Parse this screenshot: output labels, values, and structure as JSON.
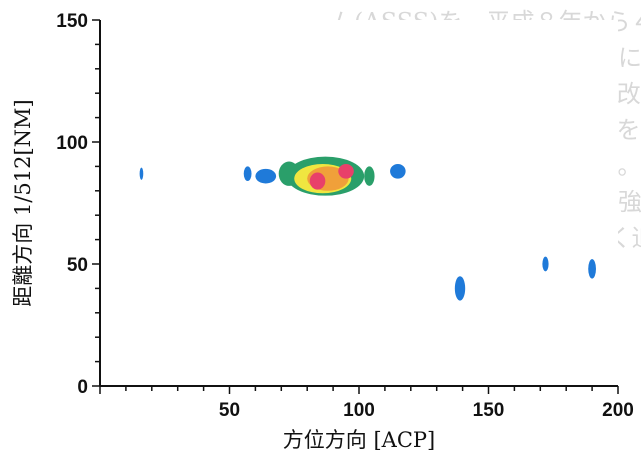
{
  "chart_data": {
    "type": "heatmap",
    "xlabel": "方位方向 [ACP]",
    "ylabel": "距離方向 1/512[NM]",
    "xlim": [
      0,
      200
    ],
    "ylim": [
      0,
      150
    ],
    "xticks": [
      50,
      100,
      150,
      200
    ],
    "yticks": [
      0,
      50,
      100,
      150
    ],
    "grid": false,
    "colors": [
      "#1f7ad9",
      "#2a9f6a",
      "#f0e640",
      "#f0a03a",
      "#e8406a"
    ],
    "blobs": [
      {
        "x": 16,
        "y": 87,
        "rx": 0.7,
        "ry": 2.5,
        "level": 0
      },
      {
        "x": 57,
        "y": 87,
        "rx": 1.5,
        "ry": 3,
        "level": 0
      },
      {
        "x": 64,
        "y": 86,
        "rx": 4,
        "ry": 3,
        "level": 0
      },
      {
        "x": 73,
        "y": 87,
        "rx": 4,
        "ry": 5,
        "level": 1
      },
      {
        "x": 87,
        "y": 86,
        "rx": 15,
        "ry": 8,
        "level": 1
      },
      {
        "x": 86,
        "y": 85,
        "rx": 11,
        "ry": 6,
        "level": 2
      },
      {
        "x": 88,
        "y": 85,
        "rx": 8,
        "ry": 5,
        "level": 3
      },
      {
        "x": 84,
        "y": 84,
        "rx": 3,
        "ry": 3.5,
        "level": 4
      },
      {
        "x": 95,
        "y": 88,
        "rx": 3,
        "ry": 3,
        "level": 4
      },
      {
        "x": 104,
        "y": 86,
        "rx": 2,
        "ry": 4,
        "level": 1
      },
      {
        "x": 115,
        "y": 88,
        "rx": 3,
        "ry": 3,
        "level": 0
      },
      {
        "x": 139,
        "y": 40,
        "rx": 2,
        "ry": 5,
        "level": 0
      },
      {
        "x": 172,
        "y": 50,
        "rx": 1.2,
        "ry": 3,
        "level": 0
      },
      {
        "x": 190,
        "y": 48,
        "rx": 1.5,
        "ry": 4,
        "level": 0
      }
    ]
  }
}
